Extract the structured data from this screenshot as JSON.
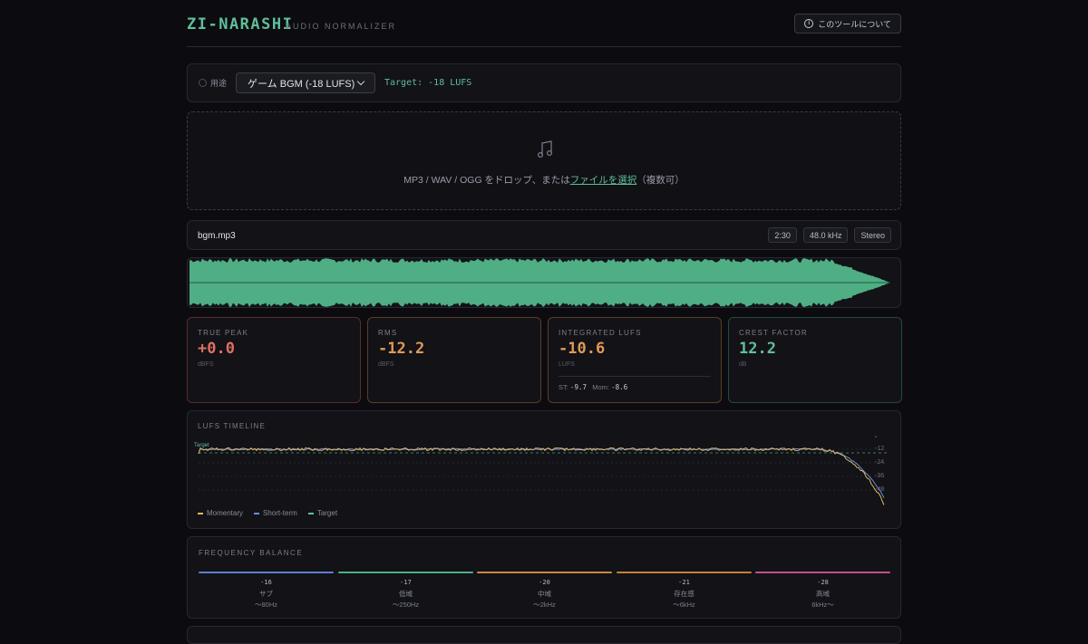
{
  "header": {
    "brand": "ZI-NARASHI",
    "subtitle": "AUDIO NORMALIZER",
    "about_label": "このツールについて"
  },
  "preset": {
    "label": "用途",
    "selected": "ゲーム BGM (-18 LUFS)",
    "target_text": "Target: -18 LUFS"
  },
  "dropzone": {
    "prefix": "MP3 / WAV / OGG をドロップ、または",
    "link": "ファイルを選択",
    "suffix": "（複数可）"
  },
  "file": {
    "name": "bgm.mp3",
    "duration": "2:30",
    "sample_rate": "48.0 kHz",
    "channels": "Stereo"
  },
  "metrics": [
    {
      "title": "TRUE PEAK",
      "value": "+0.0",
      "unit": "dBFS",
      "color": "#e0705f",
      "border": "#5a2b2b"
    },
    {
      "title": "RMS",
      "value": "-12.2",
      "unit": "dBFS",
      "color": "#e09a55",
      "border": "#5a3f22"
    },
    {
      "title": "INTEGRATED LUFS",
      "value": "-10.6",
      "unit": "LUFS",
      "color": "#e09a55",
      "border": "#5a3f22",
      "st_label": "ST:",
      "st_value": "-9.7",
      "mom_label": "Mom:",
      "mom_value": "-8.6"
    },
    {
      "title": "CREST FACTOR",
      "value": "12.2",
      "unit": "dB",
      "color": "#5fbf9a",
      "border": "#234a3c"
    }
  ],
  "timeline": {
    "title": "LUFS TIMELINE",
    "target_label": "Target",
    "y_ticks": [
      "-12",
      "-24",
      "-36",
      "-48"
    ],
    "legend": [
      {
        "label": "Momentary",
        "color": "#e0b860"
      },
      {
        "label": "Short-term",
        "color": "#6a8fd8"
      },
      {
        "label": "Target",
        "color": "#5fbf9a"
      }
    ]
  },
  "frequency": {
    "title": "FREQUENCY BALANCE",
    "bands": [
      {
        "value": "-16",
        "name": "サブ",
        "range": "〜80Hz",
        "color": "#5b7fd0"
      },
      {
        "value": "-17",
        "name": "低域",
        "range": "〜250Hz",
        "color": "#4fae84"
      },
      {
        "value": "-20",
        "name": "中域",
        "range": "〜2kHz",
        "color": "#c58b3e"
      },
      {
        "value": "-21",
        "name": "存在感",
        "range": "〜6kHz",
        "color": "#c0823a"
      },
      {
        "value": "-28",
        "name": "高域",
        "range": "6kHz〜",
        "color": "#c2508a"
      }
    ]
  },
  "colors": {
    "accent": "#5fbf9a",
    "wave": "#4fae84"
  }
}
